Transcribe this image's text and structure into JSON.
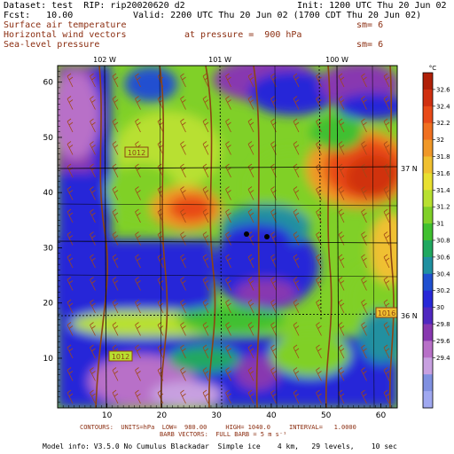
{
  "header": {
    "dataset": "Dataset: test  RIP: rip20020620 d2",
    "init": "Init: 1200 UTC Thu 20 Jun 02",
    "fcst": "Fcst:   10.00",
    "valid": "Valid: 2200 UTC Thu 20 Jun 02 (1700 CDT Thu 20 Jun 02)",
    "field1": "Surface air temperature",
    "field1_sm": "sm= 6",
    "field2": "Horizontal wind vectors",
    "field2_pressure": "at pressure =  900 hPa",
    "field3": "Sea-level pressure",
    "field3_sm": "sm= 6"
  },
  "map": {
    "lon_labels": [
      "102 W",
      "101 W",
      "100 W"
    ],
    "lat_labels": [
      "37 N",
      "36 N"
    ],
    "contour_labels": [
      "1012",
      "1012",
      "1016"
    ],
    "x_ticks": [
      "10",
      "20",
      "30",
      "40",
      "50",
      "60"
    ],
    "y_ticks": [
      "10",
      "20",
      "30",
      "40",
      "50",
      "60"
    ],
    "points": 2
  },
  "colorbar": {
    "unit": "°C",
    "labels": [
      "32.6",
      "32.4",
      "32.2",
      "32",
      "31.8",
      "31.6",
      "31.4",
      "31.2",
      "31",
      "30.8",
      "30.6",
      "30.4",
      "30.2",
      "30",
      "29.8",
      "29.6",
      "29.4"
    ],
    "colors": [
      "#b02008",
      "#d03010",
      "#e84a18",
      "#f07020",
      "#f09828",
      "#f0c030",
      "#e8e030",
      "#b8e030",
      "#80d028",
      "#40c030",
      "#20a860",
      "#2090a0",
      "#2050d0",
      "#2828d8",
      "#5028c0",
      "#8838b0",
      "#b870c8",
      "#c8a0e0",
      "#8090e0",
      "#a0a8f0"
    ]
  },
  "footer": {
    "line1": "CONTOURS:  UNITS=hPa  LOW=  980.00     HIGH= 1040.0     INTERVAL=   1.0000",
    "line2": "BARB VECTORS:  FULL BARB = 5 m s⁻¹",
    "line3": "Model info: V3.5.0 No Cumulus Blackadar  Simple ice    4 km,   29 levels,    10 sec"
  }
}
